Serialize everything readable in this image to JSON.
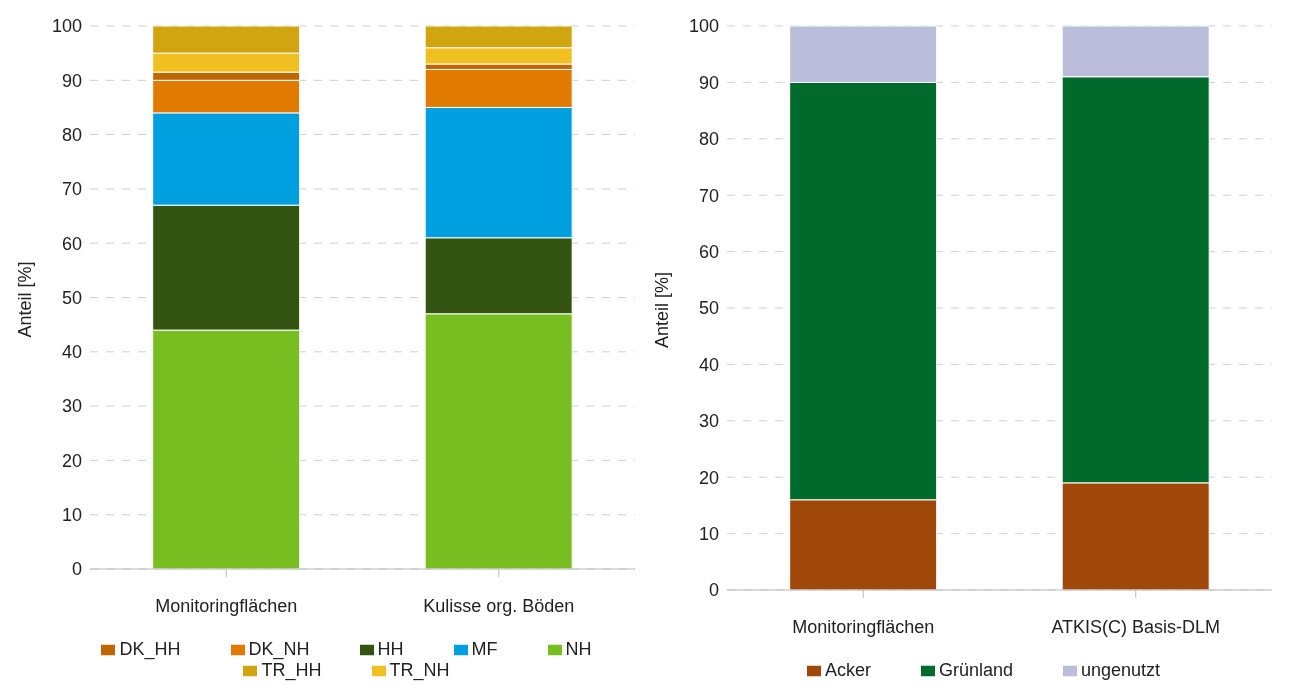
{
  "chart_data": [
    {
      "type": "bar",
      "stacked": true,
      "ylabel": "Anteil [%]",
      "categories": [
        "Monitoringflächen",
        "Kulisse org. Böden"
      ],
      "ylim": [
        0,
        100
      ],
      "yticks": [
        0,
        10,
        20,
        30,
        40,
        50,
        60,
        70,
        80,
        90,
        100
      ],
      "grid": "y",
      "legend": "bottom",
      "series": [
        {
          "name": "NH",
          "color": "#78be20",
          "values": [
            44,
            47
          ]
        },
        {
          "name": "HH",
          "color": "#335511",
          "values": [
            23,
            14
          ]
        },
        {
          "name": "MF",
          "color": "#00a0e0",
          "values": [
            17,
            24
          ]
        },
        {
          "name": "DK_NH",
          "color": "#e07b00",
          "values": [
            6,
            7
          ]
        },
        {
          "name": "DK_HH",
          "color": "#c06600",
          "values": [
            1.5,
            1
          ]
        },
        {
          "name": "TR_NH",
          "color": "#f0c020",
          "values": [
            3.5,
            3
          ]
        },
        {
          "name": "TR_HH",
          "color": "#d0a510",
          "values": [
            5,
            4
          ]
        }
      ]
    },
    {
      "type": "bar",
      "stacked": true,
      "ylabel": "Anteil [%]",
      "categories": [
        "Monitoringflächen",
        "ATKIS(C) Basis-DLM"
      ],
      "ylim": [
        0,
        100
      ],
      "yticks": [
        0,
        10,
        20,
        30,
        40,
        50,
        60,
        70,
        80,
        90,
        100
      ],
      "grid": "y",
      "legend": "bottom",
      "series": [
        {
          "name": "Acker",
          "color": "#a0480a",
          "values": [
            16,
            19
          ]
        },
        {
          "name": "Grünland",
          "color": "#006a2c",
          "values": [
            74,
            72
          ]
        },
        {
          "name": "ungenutzt",
          "color": "#bbbddb",
          "values": [
            10,
            9
          ]
        }
      ]
    }
  ]
}
